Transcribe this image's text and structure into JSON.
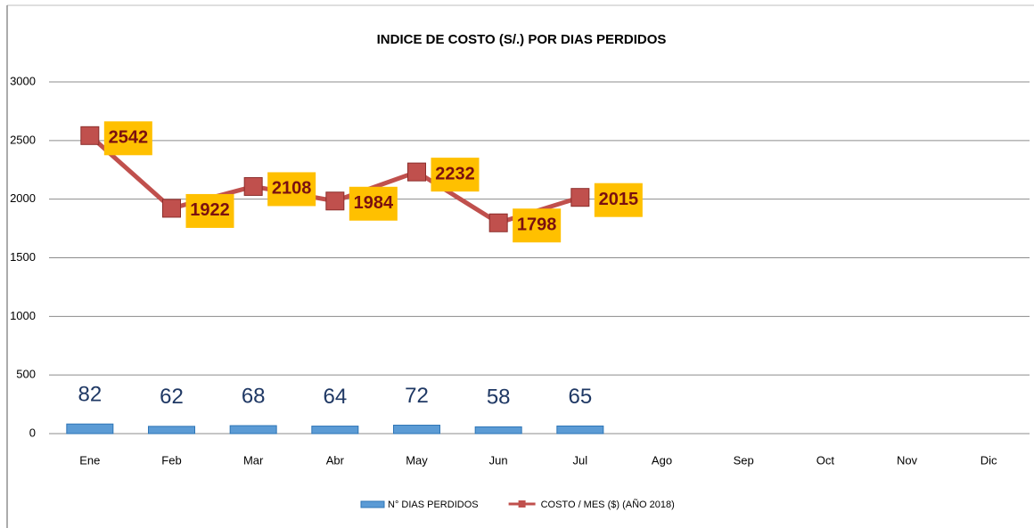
{
  "chart_data": {
    "type": "bar",
    "title": "INDICE DE COSTO (S/.) POR DIAS PERDIDOS",
    "categories": [
      "Ene",
      "Feb",
      "Mar",
      "Abr",
      "May",
      "Jun",
      "Jul",
      "Ago",
      "Sep",
      "Oct",
      "Nov",
      "Dic"
    ],
    "series": [
      {
        "name": "N° DIAS PERDIDOS",
        "type": "bar",
        "color": "#5b9bd5",
        "values": [
          82,
          62,
          68,
          64,
          72,
          58,
          65,
          null,
          null,
          null,
          null,
          null
        ]
      },
      {
        "name": "COSTO / MES ($) (AÑO 2018)",
        "type": "line",
        "color": "#c0504d",
        "label_color": "#ffc000",
        "values": [
          2542,
          1922,
          2108,
          1984,
          2232,
          1798,
          2015,
          null,
          null,
          null,
          null,
          null
        ]
      }
    ],
    "ylim": [
      0,
      3000
    ],
    "yticks": [
      0,
      500,
      1000,
      1500,
      2000,
      2500,
      3000
    ],
    "grid": true,
    "legend": "bottom"
  }
}
